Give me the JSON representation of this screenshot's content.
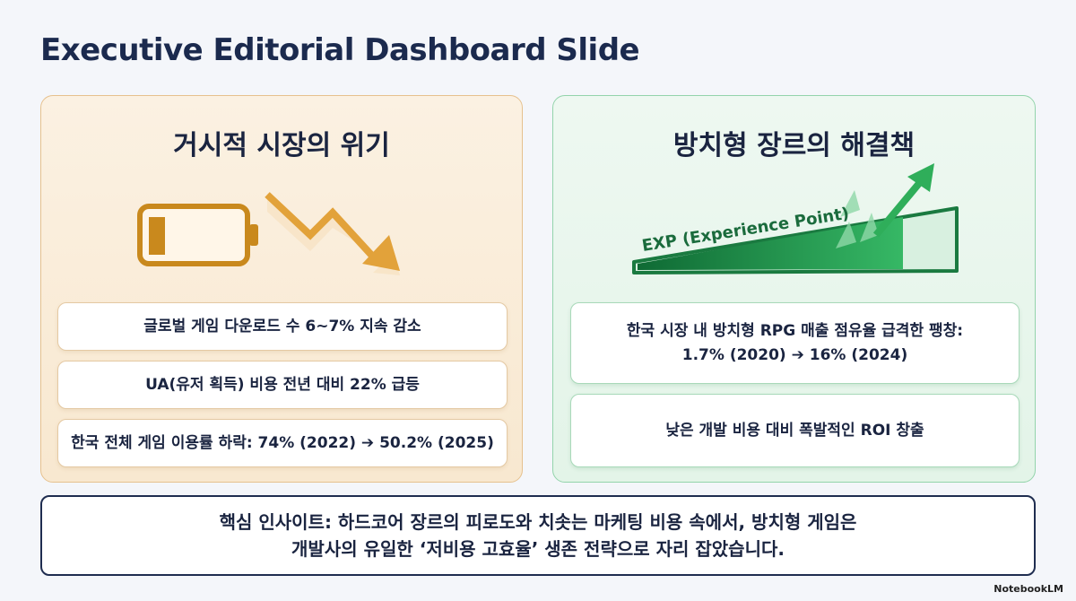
{
  "title": "Executive Editorial Dashboard Slide",
  "left_panel": {
    "heading": "거시적 시장의 위기",
    "items": [
      "글로벌 게임 다운로드 수 6~7% 지속 감소",
      "UA(유저 획득) 비용 전년 대비 22% 급등",
      "한국 전체 게임 이용률 하락: 74% (2022) ➔ 50.2% (2025)"
    ]
  },
  "right_panel": {
    "heading": "방치형 장르의 해결책",
    "exp_label": "EXP (Experience Point)",
    "items": [
      [
        "한국 시장 내 방치형 RPG 매출 점유율 급격한 팽창:",
        "1.7% (2020) ➔ 16% (2024)"
      ],
      [
        "낮은 개발 비용 대비 폭발적인 ROI 창출"
      ]
    ]
  },
  "insight": [
    "핵심 인사이트: 하드코어 장르의 피로도와 치솟는 마케팅 비용 속에서, 방치형 게임은",
    "개발사의 유일한 ‘저비용 고효율’ 생존 전략으로 자리 잡았습니다."
  ],
  "footer": "NotebookLM"
}
